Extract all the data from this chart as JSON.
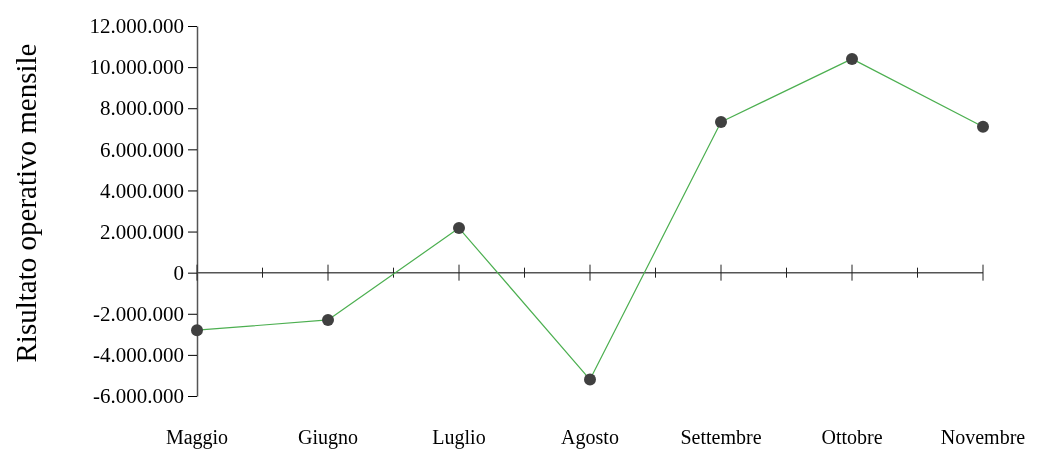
{
  "chart_data": {
    "type": "line",
    "ylabel": "Risultato operativo mensile",
    "categories": [
      "Maggio",
      "Giugno",
      "Luglio",
      "Agosto",
      "Settembre",
      "Ottobre",
      "Novembre"
    ],
    "series": [
      {
        "color": "#4caf50",
        "values": [
          -2800000,
          -2300000,
          2170000,
          -5200000,
          7330000,
          10400000,
          7100000
        ]
      }
    ],
    "ylim": [
      -6000000,
      12000000
    ],
    "yticks": [
      {
        "value": -6000000,
        "label": "-6.000.000"
      },
      {
        "value": -4000000,
        "label": "-4.000.000"
      },
      {
        "value": -2000000,
        "label": "-2.000.000"
      },
      {
        "value": 0,
        "label": "0"
      },
      {
        "value": 2000000,
        "label": "2.000.000"
      },
      {
        "value": 4000000,
        "label": "4.000.000"
      },
      {
        "value": 6000000,
        "label": "6.000.000"
      },
      {
        "value": 8000000,
        "label": "8.000.000"
      },
      {
        "value": 10000000,
        "label": "10.000.000"
      },
      {
        "value": 12000000,
        "label": "12.000.000"
      }
    ],
    "ref_lines": [
      {
        "axis": "y",
        "value": 0,
        "color": "#555555"
      }
    ],
    "grid": false,
    "marker": "circle",
    "line_style": "solid"
  }
}
